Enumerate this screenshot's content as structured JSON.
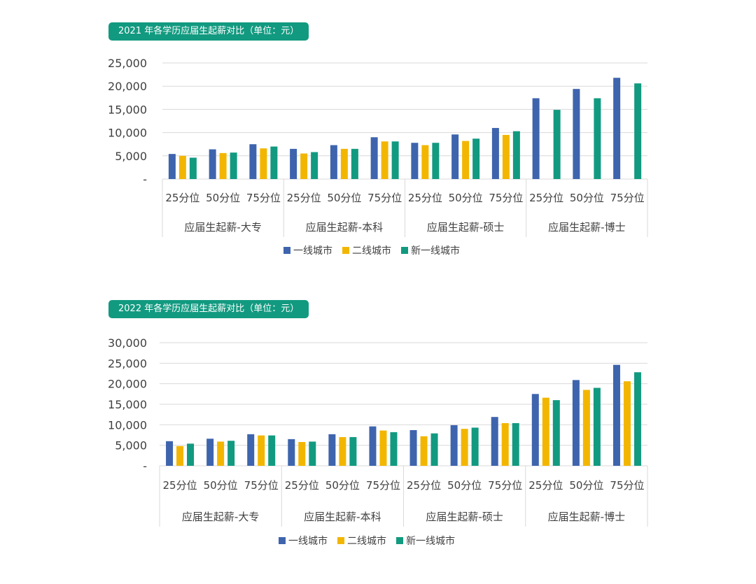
{
  "legend": [
    "一线城市",
    "二线城市",
    "新一线城市"
  ],
  "colors": {
    "series": [
      "#3e64ad",
      "#f2b600",
      "#129a80"
    ],
    "title_bg": "#129a80",
    "grid": "#d9d9d9",
    "text": "#404040"
  },
  "chart_data": [
    {
      "type": "bar",
      "title": "2021 年各学历应届生起薪对比（单位：元）",
      "groups": [
        "应届生起薪-大专",
        "应届生起薪-本科",
        "应届生起薪-硕士",
        "应届生起薪-博士"
      ],
      "categories": [
        "25分位",
        "50分位",
        "75分位",
        "25分位",
        "50分位",
        "75分位",
        "25分位",
        "50分位",
        "75分位",
        "25分位",
        "50分位",
        "75分位"
      ],
      "series": [
        {
          "name": "一线城市",
          "values": [
            5400,
            6400,
            7500,
            6500,
            7300,
            9000,
            7800,
            9600,
            11000,
            17400,
            19400,
            21800
          ]
        },
        {
          "name": "二线城市",
          "values": [
            5000,
            5600,
            6600,
            5500,
            6500,
            8100,
            7300,
            8200,
            9500,
            0,
            0,
            0
          ]
        },
        {
          "name": "新一线城市",
          "values": [
            4600,
            5700,
            7000,
            5800,
            6500,
            8100,
            7800,
            8700,
            10300,
            14900,
            17400,
            20600
          ]
        }
      ],
      "yticks": [
        "-",
        "5,000",
        "10,000",
        "15,000",
        "20,000",
        "25,000"
      ],
      "ylim": [
        0,
        25000
      ],
      "grid": true,
      "legend_position": "bottom"
    },
    {
      "type": "bar",
      "title": "2022 年各学历应届生起薪对比（单位：元）",
      "groups": [
        "应届生起薪-大专",
        "应届生起薪-本科",
        "应届生起薪-硕士",
        "应届生起薪-博士"
      ],
      "categories": [
        "25分位",
        "50分位",
        "75分位",
        "25分位",
        "50分位",
        "75分位",
        "25分位",
        "50分位",
        "75分位",
        "25分位",
        "50分位",
        "75分位"
      ],
      "series": [
        {
          "name": "一线城市",
          "values": [
            6000,
            6600,
            7700,
            6500,
            7700,
            9600,
            8700,
            9900,
            11900,
            17500,
            20900,
            24600
          ]
        },
        {
          "name": "二线城市",
          "values": [
            4800,
            5900,
            7400,
            5800,
            7000,
            8600,
            7200,
            9000,
            10400,
            16600,
            18500,
            20600
          ]
        },
        {
          "name": "新一线城市",
          "values": [
            5400,
            6100,
            7400,
            5900,
            7000,
            8200,
            7900,
            9300,
            10400,
            16000,
            19000,
            22800
          ]
        }
      ],
      "yticks": [
        "-",
        "5,000",
        "10,000",
        "15,000",
        "20,000",
        "25,000",
        "30,000"
      ],
      "ylim": [
        0,
        30000
      ],
      "grid": true,
      "legend_position": "bottom"
    }
  ]
}
